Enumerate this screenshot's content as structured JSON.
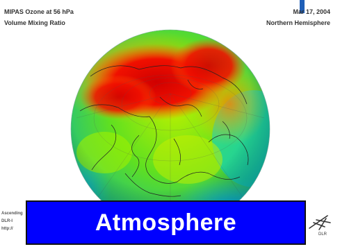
{
  "header": {
    "title_line1": "MIPAS Ozone at 56 hPa",
    "title_line2": "Volume Mixing Ratio",
    "date": "Mar 17, 2004",
    "region": "Northern Hemisphere"
  },
  "footer": {
    "line1": "Ascending",
    "line2": "DLR-I",
    "line3": "http://"
  },
  "banner": {
    "label": "Atmosphere"
  },
  "logo": {
    "text": "DLR"
  },
  "colors": {
    "banner": "#0000ff",
    "accent": "#1f5fb8",
    "high": "#e00000",
    "mid": "#80e000",
    "low": "#00c0ff"
  }
}
